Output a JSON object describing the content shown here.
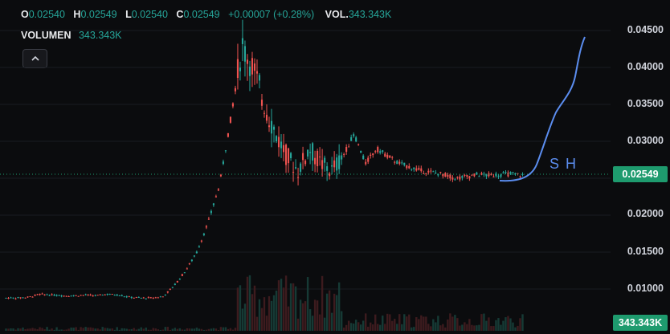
{
  "legend": {
    "open_key": "O",
    "open": "0.02540",
    "high_key": "H",
    "high": "0.02549",
    "low_key": "L",
    "low": "0.02540",
    "close_key": "C",
    "close": "0.02549",
    "change": "+0.00007 (+0.28%)",
    "vol_key": "VOL.",
    "vol": "343.343K"
  },
  "volume_legend": {
    "label": "VOLUMEN",
    "value": "343.343K"
  },
  "price_axis": [
    "0.04500",
    "0.04000",
    "0.03500",
    "0.03000",
    "0.02000",
    "0.01500",
    "0.01000"
  ],
  "current_price": "0.02549",
  "current_volume": "343.343K",
  "annotation_text": "SH",
  "colors": {
    "up": "#26a69a",
    "down": "#ef5350",
    "drawing": "#5b8def",
    "tag": "#1e9b6e"
  },
  "chart_data": {
    "type": "candlestick",
    "ylim": [
      0.0085,
      0.0465
    ],
    "price_series": [
      0.0088,
      0.0088,
      0.0089,
      0.0093,
      0.0092,
      0.0091,
      0.0091,
      0.0092,
      0.0091,
      0.0093,
      0.0092,
      0.0089,
      0.0088,
      0.0088,
      0.009,
      0.0105,
      0.0125,
      0.015,
      0.019,
      0.024,
      0.033,
      0.043,
      0.04,
      0.035,
      0.031,
      0.028,
      0.026,
      0.029,
      0.027,
      0.026,
      0.028,
      0.031,
      0.027,
      0.029,
      0.028,
      0.027,
      0.0265,
      0.026,
      0.0258,
      0.0255,
      0.025,
      0.0252,
      0.0255,
      0.0254,
      0.0255,
      0.0256,
      0.0254
    ],
    "current_price": 0.02549,
    "drawing_note": "SH"
  }
}
